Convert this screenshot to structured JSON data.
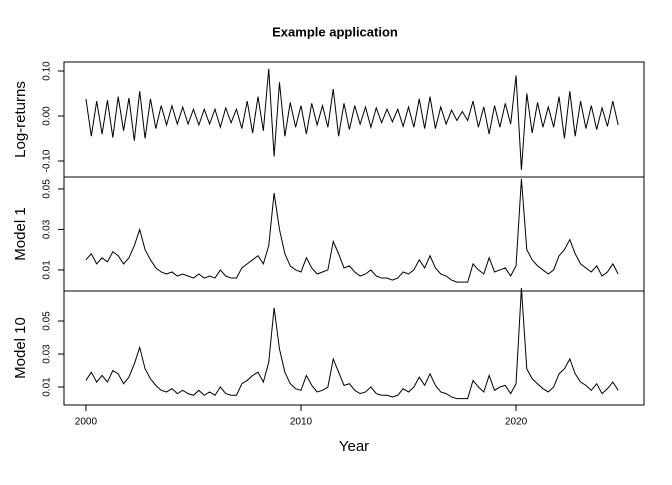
{
  "chart_data": {
    "type": "line",
    "title": "Example application",
    "xlabel": "Year",
    "color": "#000000",
    "xlim": [
      1998.98,
      2025.95
    ],
    "xticks": [
      2000,
      2010,
      2020
    ],
    "x": [
      2000,
      2000.25,
      2000.5,
      2000.75,
      2001,
      2001.25,
      2001.5,
      2001.75,
      2002,
      2002.25,
      2002.5,
      2002.75,
      2003,
      2003.25,
      2003.5,
      2003.75,
      2004,
      2004.25,
      2004.5,
      2004.75,
      2005,
      2005.25,
      2005.5,
      2005.75,
      2006,
      2006.25,
      2006.5,
      2006.75,
      2007,
      2007.25,
      2007.5,
      2007.75,
      2008,
      2008.25,
      2008.5,
      2008.75,
      2009,
      2009.25,
      2009.5,
      2009.75,
      2010,
      2010.25,
      2010.5,
      2010.75,
      2011,
      2011.25,
      2011.5,
      2011.75,
      2012,
      2012.25,
      2012.5,
      2012.75,
      2013,
      2013.25,
      2013.5,
      2013.75,
      2014,
      2014.25,
      2014.5,
      2014.75,
      2015,
      2015.25,
      2015.5,
      2015.75,
      2016,
      2016.25,
      2016.5,
      2016.75,
      2017,
      2017.25,
      2017.5,
      2017.75,
      2018,
      2018.25,
      2018.5,
      2018.75,
      2019,
      2019.25,
      2019.5,
      2019.75,
      2020,
      2020.25,
      2020.5,
      2020.75,
      2021,
      2021.25,
      2021.5,
      2021.75,
      2022,
      2022.25,
      2022.5,
      2022.75,
      2023,
      2023.25,
      2023.5,
      2023.75,
      2024,
      2024.25,
      2024.5,
      2024.75
    ],
    "series": [
      {
        "name": "Log-returns",
        "ylim": [
          -0.1356,
          0.12
        ],
        "yticks": [
          {
            "value": -0.1,
            "label": "-0.10"
          },
          {
            "value": 0,
            "label": "0.00"
          },
          {
            "value": 0.1,
            "label": "0.10"
          }
        ],
        "values": [
          0.038,
          -0.045,
          0.033,
          -0.04,
          0.035,
          -0.048,
          0.043,
          -0.033,
          0.04,
          -0.055,
          0.055,
          -0.05,
          0.038,
          -0.028,
          0.023,
          -0.02,
          0.023,
          -0.018,
          0.02,
          -0.018,
          0.015,
          -0.02,
          0.015,
          -0.018,
          0.015,
          -0.025,
          0.018,
          -0.015,
          0.015,
          -0.028,
          0.033,
          -0.038,
          0.043,
          -0.033,
          0.105,
          -0.09,
          0.075,
          -0.045,
          0.03,
          -0.025,
          0.023,
          -0.04,
          0.028,
          -0.02,
          0.023,
          -0.025,
          0.06,
          -0.045,
          0.028,
          -0.03,
          0.023,
          -0.018,
          0.02,
          -0.025,
          0.018,
          -0.015,
          0.015,
          -0.013,
          0.015,
          -0.023,
          0.02,
          -0.025,
          0.038,
          -0.028,
          0.043,
          -0.028,
          0.02,
          -0.018,
          0.013,
          -0.01,
          0.01,
          -0.01,
          0.033,
          -0.025,
          0.02,
          -0.04,
          0.023,
          -0.025,
          0.028,
          -0.018,
          0.09,
          -0.12,
          0.05,
          -0.038,
          0.03,
          -0.025,
          0.02,
          -0.025,
          0.043,
          -0.05,
          0.055,
          -0.045,
          0.033,
          -0.028,
          0.023,
          -0.03,
          0.018,
          -0.023,
          0.033,
          -0.02
        ]
      },
      {
        "name": "Model 1",
        "ylim": [
          -0.0004,
          0.0559
        ],
        "yticks": [
          0.01,
          0.03,
          0.05
        ],
        "values": [
          0.015,
          0.018,
          0.013,
          0.016,
          0.014,
          0.019,
          0.017,
          0.013,
          0.016,
          0.022,
          0.03,
          0.02,
          0.015,
          0.011,
          0.009,
          0.008,
          0.009,
          0.007,
          0.008,
          0.007,
          0.006,
          0.008,
          0.006,
          0.007,
          0.006,
          0.01,
          0.007,
          0.006,
          0.006,
          0.011,
          0.013,
          0.015,
          0.017,
          0.013,
          0.022,
          0.048,
          0.03,
          0.018,
          0.012,
          0.01,
          0.009,
          0.016,
          0.011,
          0.008,
          0.009,
          0.01,
          0.024,
          0.018,
          0.011,
          0.012,
          0.009,
          0.007,
          0.008,
          0.01,
          0.007,
          0.006,
          0.006,
          0.005,
          0.006,
          0.009,
          0.008,
          0.01,
          0.015,
          0.011,
          0.017,
          0.011,
          0.008,
          0.007,
          0.005,
          0.004,
          0.004,
          0.004,
          0.013,
          0.01,
          0.008,
          0.016,
          0.009,
          0.01,
          0.011,
          0.007,
          0.012,
          0.055,
          0.02,
          0.015,
          0.012,
          0.01,
          0.008,
          0.01,
          0.017,
          0.02,
          0.025,
          0.018,
          0.013,
          0.011,
          0.009,
          0.012,
          0.007,
          0.009,
          0.013,
          0.008
        ]
      },
      {
        "name": "Model 10",
        "ylim": [
          -0.0009,
          0.0682
        ],
        "yticks": [
          0.01,
          0.03,
          0.05
        ],
        "values": [
          0.014,
          0.019,
          0.013,
          0.017,
          0.013,
          0.02,
          0.018,
          0.012,
          0.016,
          0.024,
          0.034,
          0.021,
          0.015,
          0.011,
          0.008,
          0.007,
          0.009,
          0.006,
          0.008,
          0.006,
          0.005,
          0.008,
          0.005,
          0.007,
          0.005,
          0.01,
          0.006,
          0.005,
          0.005,
          0.012,
          0.014,
          0.017,
          0.019,
          0.013,
          0.025,
          0.058,
          0.033,
          0.019,
          0.012,
          0.009,
          0.008,
          0.017,
          0.011,
          0.007,
          0.008,
          0.01,
          0.027,
          0.019,
          0.011,
          0.012,
          0.008,
          0.006,
          0.007,
          0.01,
          0.006,
          0.005,
          0.005,
          0.004,
          0.005,
          0.009,
          0.007,
          0.01,
          0.016,
          0.011,
          0.018,
          0.011,
          0.007,
          0.006,
          0.004,
          0.003,
          0.003,
          0.003,
          0.014,
          0.01,
          0.007,
          0.017,
          0.008,
          0.01,
          0.011,
          0.006,
          0.012,
          0.07,
          0.021,
          0.015,
          0.012,
          0.009,
          0.007,
          0.01,
          0.018,
          0.021,
          0.027,
          0.018,
          0.013,
          0.011,
          0.008,
          0.012,
          0.006,
          0.009,
          0.013,
          0.008
        ]
      }
    ]
  }
}
